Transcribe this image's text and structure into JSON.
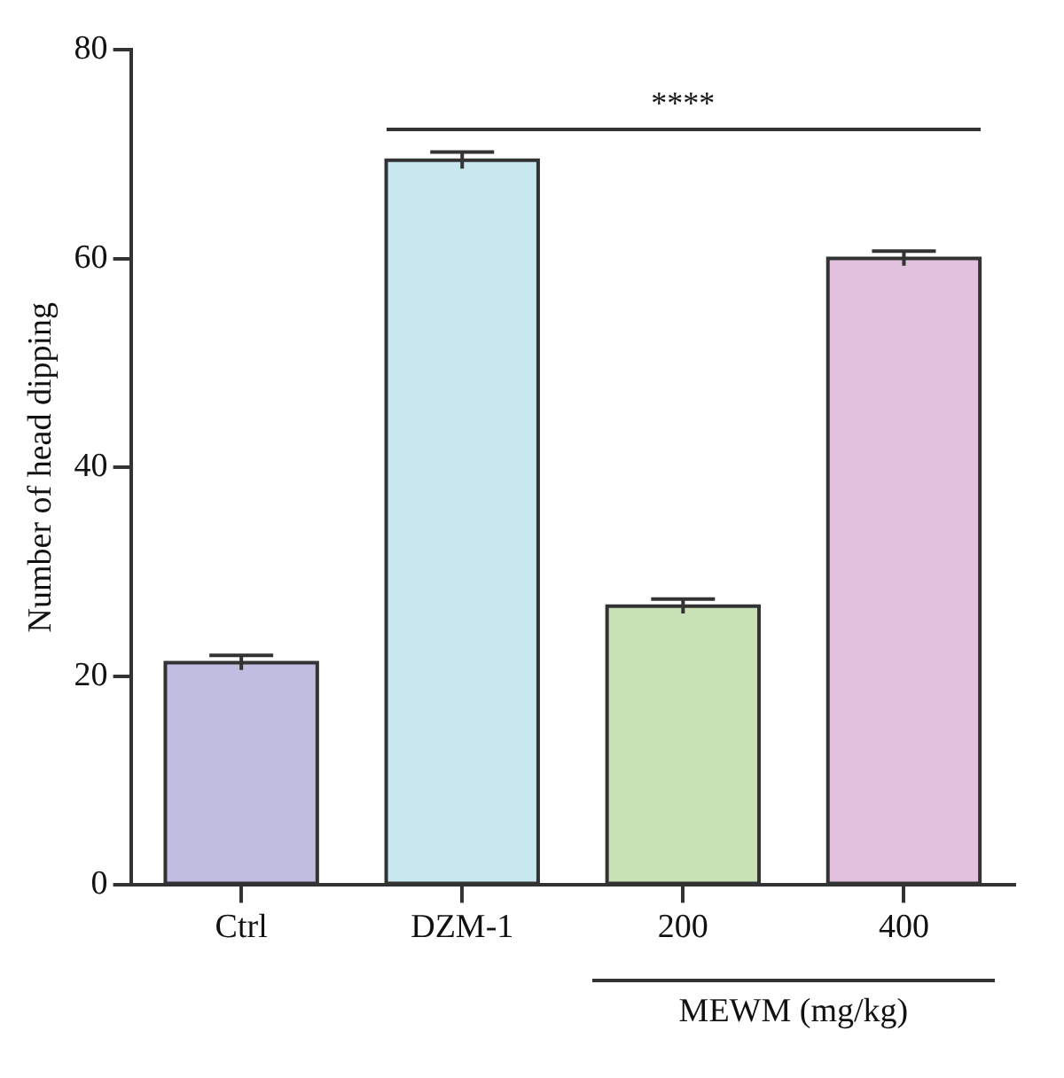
{
  "chart_data": {
    "type": "bar",
    "ylabel": "Number of head dipping",
    "xlabel": "MEWM (mg/kg)",
    "categories": [
      "Ctrl",
      "DZM-1",
      "200",
      "400"
    ],
    "values": [
      21.3,
      69.4,
      26.7,
      60.0
    ],
    "errors": [
      0.7,
      0.8,
      0.7,
      0.7
    ],
    "colors": [
      "#c0bde0",
      "#c7e8ef",
      "#c8e2b6",
      "#e2c1de"
    ],
    "ylim": [
      0,
      80
    ],
    "yticks": [
      0,
      20,
      40,
      60,
      80
    ],
    "annotations": [
      "****"
    ],
    "grid": false,
    "legend": false
  }
}
